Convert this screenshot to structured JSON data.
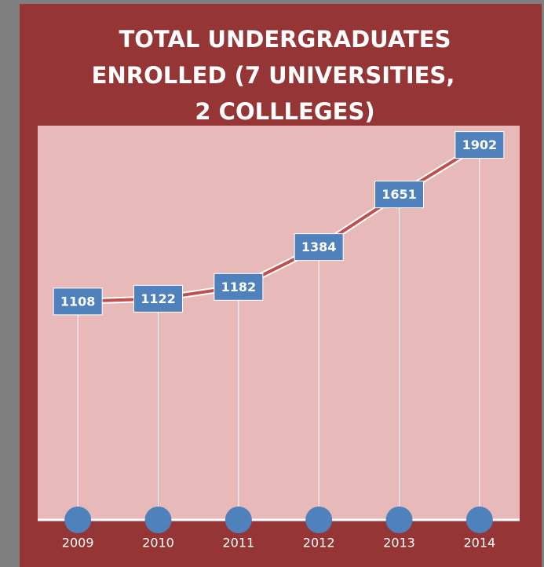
{
  "chart_data": {
    "type": "line",
    "title_lines": [
      "TOTAL UNDERGRADUATES",
      "ENROLLED (7 UNIVERSITIES,",
      "2 COLLLEGES)"
    ],
    "categories": [
      "2009",
      "2010",
      "2011",
      "2012",
      "2013",
      "2014"
    ],
    "values": [
      1108,
      1122,
      1182,
      1384,
      1651,
      1902
    ],
    "color": "#c0504d",
    "marker_color": "#4f81bd",
    "ylim": [
      0,
      2000
    ]
  }
}
